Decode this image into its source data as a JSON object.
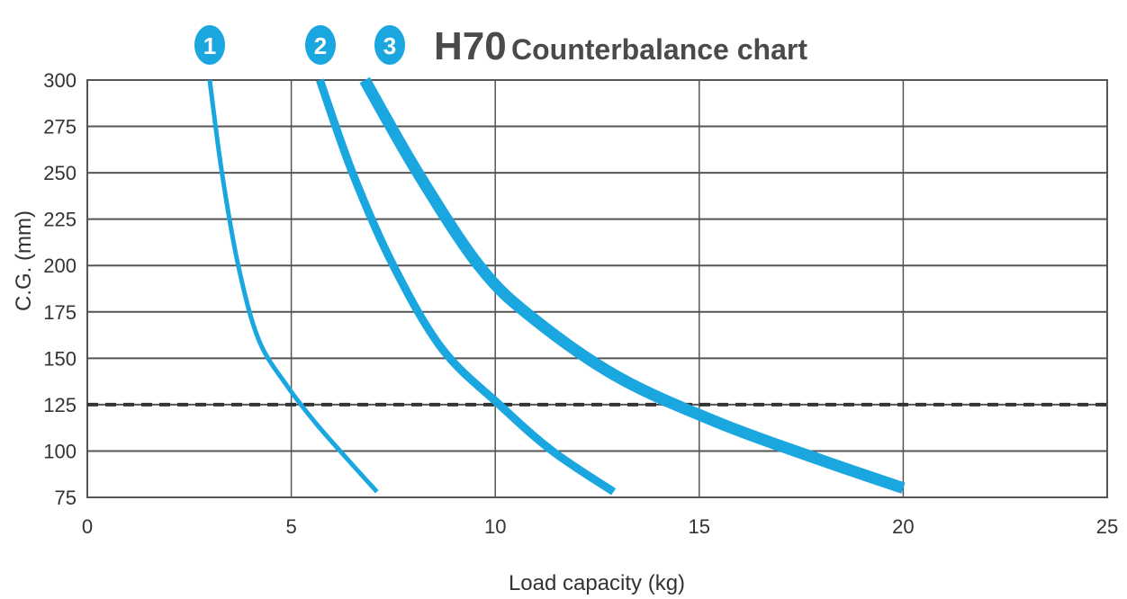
{
  "chart_data": {
    "type": "line",
    "title": "H70",
    "subtitle": "Counterbalance chart",
    "xlabel": "Load capacity (kg)",
    "ylabel": "C.G. (mm)",
    "xlim": [
      0,
      25
    ],
    "ylim": [
      75,
      300
    ],
    "xticks": [
      "0",
      "5",
      "10",
      "15",
      "20",
      "25"
    ],
    "yticks": [
      "75",
      "100",
      "125",
      "150",
      "175",
      "200",
      "225",
      "250",
      "275",
      "300"
    ],
    "grid": true,
    "reference_line": {
      "y": 125,
      "style": "dashed"
    },
    "series": [
      {
        "name": "1",
        "x": [
          3.0,
          3.3,
          3.7,
          4.2,
          4.9,
          5.6,
          6.4,
          7.1
        ],
        "y": [
          300,
          250,
          200,
          160,
          135,
          115,
          95,
          78
        ]
      },
      {
        "name": "2",
        "x": [
          5.7,
          6.5,
          7.5,
          8.7,
          10.1,
          11.4,
          12.9
        ],
        "y": [
          300,
          250,
          200,
          155,
          125,
          100,
          78
        ]
      },
      {
        "name": "3",
        "x": [
          6.8,
          8.1,
          9.6,
          10.9,
          13.0,
          15.5,
          18.0,
          20.0
        ],
        "y": [
          300,
          250,
          200,
          172,
          140,
          115,
          95,
          80
        ]
      }
    ]
  },
  "colors": {
    "curve": "#1aa7e0",
    "grid": "#555555",
    "dashed": "#333333",
    "badge": "#1aa7e0"
  }
}
